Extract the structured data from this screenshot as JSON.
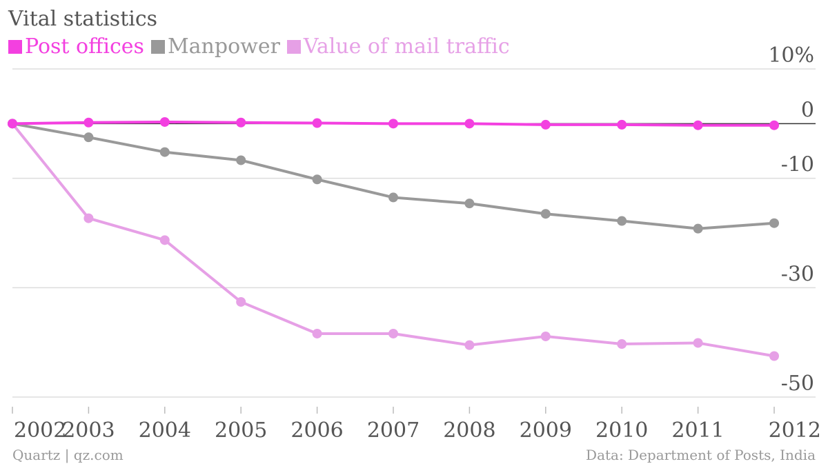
{
  "colors": {
    "post_offices": "#f340e0",
    "manpower": "#999999",
    "mail_traffic": "#e6a0e6",
    "grid": "#dddddd",
    "text": "#555555",
    "footer": "#999999"
  },
  "footer": {
    "source_left": "Quartz | qz.com",
    "source_right": "Data: Department of Posts, India"
  },
  "chart_data": {
    "type": "line",
    "title": "Vital statistics",
    "xlabel": "",
    "ylabel": "",
    "legend_placement": "top-left",
    "grid": true,
    "x": [
      "2002",
      "2003",
      "2004",
      "2005",
      "2006",
      "2007",
      "2008",
      "2009",
      "2010",
      "2011",
      "2012"
    ],
    "ylim": [
      -50,
      10
    ],
    "yticks": [
      {
        "value": 10,
        "label": "10%"
      },
      {
        "value": 0,
        "label": "0"
      },
      {
        "value": -10,
        "label": "-10"
      },
      {
        "value": -30,
        "label": "-30"
      },
      {
        "value": -50,
        "label": "-50"
      }
    ],
    "series": [
      {
        "name": "Post offices",
        "color": "#f340e0",
        "values": [
          0,
          0.2,
          0.3,
          0.2,
          0.1,
          0,
          0,
          -0.2,
          -0.2,
          -0.3,
          -0.3
        ]
      },
      {
        "name": "Manpower",
        "color": "#999999",
        "values": [
          0,
          -2.5,
          -5.2,
          -6.7,
          -10.2,
          -13.5,
          -14.6,
          -16.5,
          -17.8,
          -19.2,
          -18.2
        ]
      },
      {
        "name": "Value of mail traffic",
        "color": "#e6a0e6",
        "values": [
          0,
          -17.3,
          -21.3,
          -32.6,
          -38.4,
          -38.4,
          -40.5,
          -38.9,
          -40.3,
          -40.1,
          -42.5
        ]
      }
    ]
  }
}
